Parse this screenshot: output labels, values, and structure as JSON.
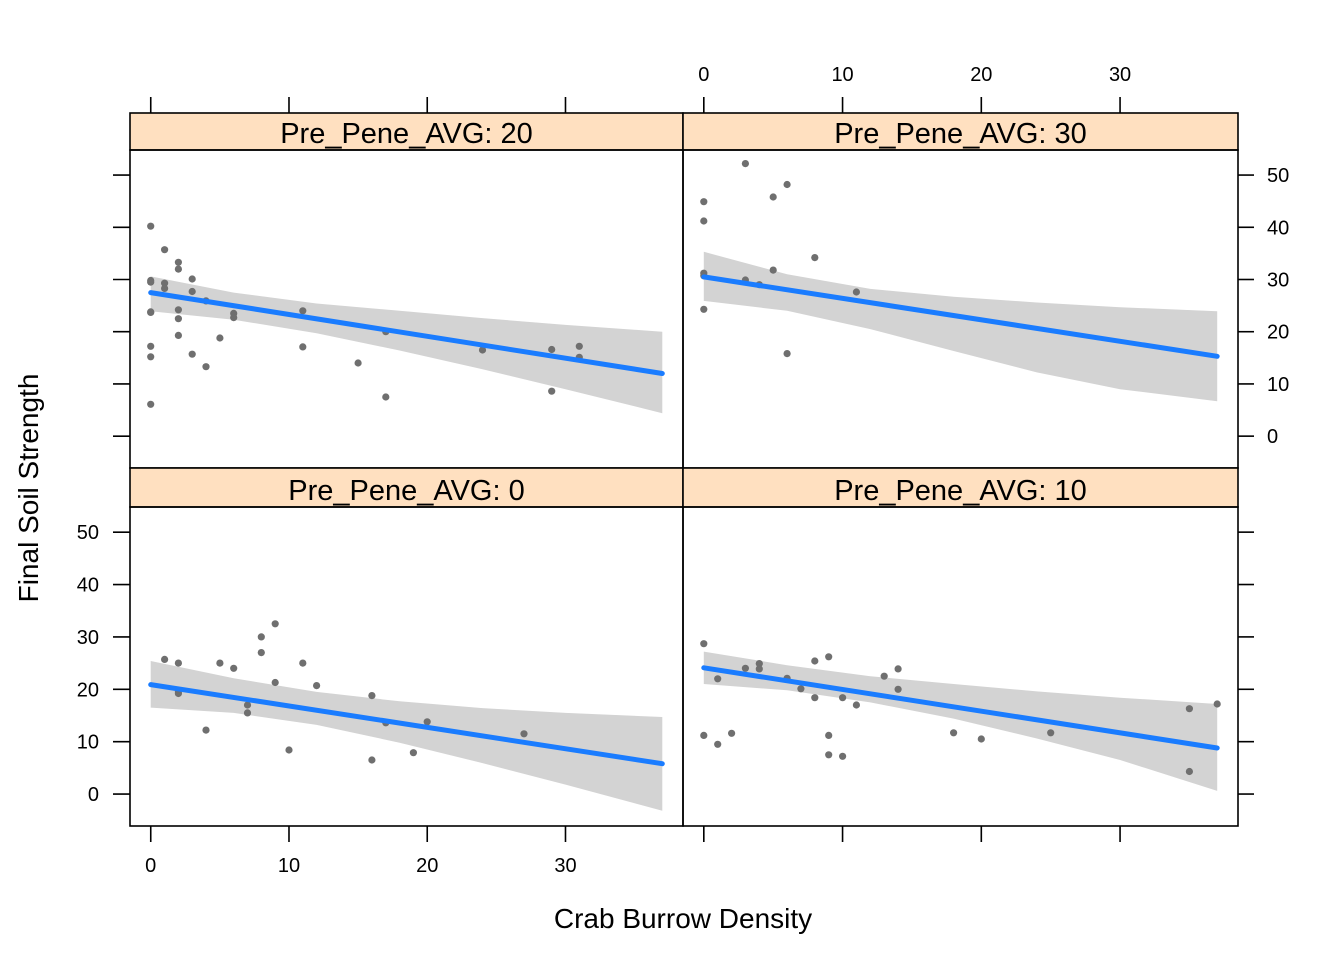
{
  "chart_data": {
    "type": "scatter",
    "xlabel": "Crab Burrow Density",
    "ylabel": "Final Soil Strength",
    "xlim": [
      -1.5,
      38.5
    ],
    "ylim": [
      -6.1,
      54.8
    ],
    "x_ticks": [
      "0",
      "10",
      "20",
      "30"
    ],
    "y_ticks": [
      "0",
      "10",
      "20",
      "30",
      "40",
      "50"
    ],
    "colors": {
      "strip": "#ffe0c0",
      "points": "#6f6f6f",
      "fit_line": "#1a7cff",
      "confidence_band": "#d3d3d3",
      "frame": "#000000"
    },
    "panels": [
      {
        "label": "Pre_Pene_AVG: 20",
        "position": "top-left",
        "points": [
          [
            0,
            40.2
          ],
          [
            1,
            35.7
          ],
          [
            2,
            33.3
          ],
          [
            2,
            32.0
          ],
          [
            3,
            30.1
          ],
          [
            0,
            29.8
          ],
          [
            0,
            29.5
          ],
          [
            1,
            29.3
          ],
          [
            1,
            28.3
          ],
          [
            3,
            27.7
          ],
          [
            4,
            25.9
          ],
          [
            6,
            23.5
          ],
          [
            6,
            22.7
          ],
          [
            11,
            24.0
          ],
          [
            2,
            24.2
          ],
          [
            0,
            23.7
          ],
          [
            0,
            23.8
          ],
          [
            2,
            22.5
          ],
          [
            2,
            19.3
          ],
          [
            5,
            18.8
          ],
          [
            17,
            20.0
          ],
          [
            0,
            17.2
          ],
          [
            11,
            17.1
          ],
          [
            3,
            15.7
          ],
          [
            0,
            15.2
          ],
          [
            4,
            13.3
          ],
          [
            15,
            14.0
          ],
          [
            24,
            16.5
          ],
          [
            29,
            16.6
          ],
          [
            31,
            17.2
          ],
          [
            31,
            15.1
          ],
          [
            17,
            7.5
          ],
          [
            29,
            8.6
          ],
          [
            0,
            6.1
          ]
        ],
        "fit": {
          "x": [
            0,
            37
          ],
          "y": [
            27.5,
            12.0
          ]
        },
        "band": {
          "x": [
            0,
            6,
            12,
            18,
            24,
            30,
            37
          ],
          "lower": [
            23.9,
            22.3,
            19.7,
            16.4,
            12.8,
            9.0,
            4.4
          ],
          "upper": [
            30.6,
            27.5,
            25.4,
            24.0,
            22.6,
            21.3,
            20.0
          ]
        }
      },
      {
        "label": "Pre_Pene_AVG: 30",
        "position": "top-right",
        "points": [
          [
            3,
            52.2
          ],
          [
            6,
            48.2
          ],
          [
            5,
            45.8
          ],
          [
            0,
            44.9
          ],
          [
            0,
            41.2
          ],
          [
            8,
            34.2
          ],
          [
            5,
            31.8
          ],
          [
            0,
            31.2
          ],
          [
            0,
            30.7
          ],
          [
            3,
            29.9
          ],
          [
            4,
            29.0
          ],
          [
            11,
            27.6
          ],
          [
            0,
            24.3
          ],
          [
            6,
            15.8
          ]
        ],
        "fit": {
          "x": [
            0,
            37
          ],
          "y": [
            30.5,
            15.3
          ]
        },
        "band": {
          "x": [
            0,
            6,
            12,
            18,
            24,
            30,
            37
          ],
          "lower": [
            25.9,
            24.0,
            20.5,
            16.3,
            12.2,
            9.0,
            6.7
          ],
          "upper": [
            35.3,
            31.0,
            28.2,
            26.7,
            25.6,
            24.7,
            23.9
          ]
        }
      },
      {
        "label": "Pre_Pene_AVG: 0",
        "position": "bottom-left",
        "points": [
          [
            9,
            32.5
          ],
          [
            8,
            30.0
          ],
          [
            8,
            27.0
          ],
          [
            1,
            25.7
          ],
          [
            2,
            25.0
          ],
          [
            5,
            25.0
          ],
          [
            11,
            25.0
          ],
          [
            6,
            24.0
          ],
          [
            9,
            21.3
          ],
          [
            12,
            20.7
          ],
          [
            2,
            19.5
          ],
          [
            2,
            19.2
          ],
          [
            16,
            18.8
          ],
          [
            7,
            17.0
          ],
          [
            7,
            15.5
          ],
          [
            17,
            13.6
          ],
          [
            20,
            13.8
          ],
          [
            4,
            12.2
          ],
          [
            27,
            11.5
          ],
          [
            10,
            8.4
          ],
          [
            19,
            7.9
          ],
          [
            16,
            6.5
          ]
        ],
        "fit": {
          "x": [
            0,
            37
          ],
          "y": [
            20.9,
            5.8
          ]
        },
        "band": {
          "x": [
            0,
            6,
            12,
            18,
            24,
            30,
            37
          ],
          "lower": [
            16.5,
            15.5,
            13.2,
            9.8,
            5.9,
            1.8,
            -3.2
          ],
          "upper": [
            25.4,
            22.1,
            19.5,
            17.7,
            16.4,
            15.5,
            14.7
          ]
        }
      },
      {
        "label": "Pre_Pene_AVG: 10",
        "position": "bottom-right",
        "points": [
          [
            0,
            28.7
          ],
          [
            9,
            26.2
          ],
          [
            8,
            25.4
          ],
          [
            4,
            24.9
          ],
          [
            3,
            24.0
          ],
          [
            4,
            23.9
          ],
          [
            14,
            23.9
          ],
          [
            13,
            22.5
          ],
          [
            6,
            22.1
          ],
          [
            1,
            22.0
          ],
          [
            7,
            20.1
          ],
          [
            14,
            20.0
          ],
          [
            8,
            18.4
          ],
          [
            10,
            18.4
          ],
          [
            11,
            17.0
          ],
          [
            35,
            16.3
          ],
          [
            37,
            17.2
          ],
          [
            25,
            11.7
          ],
          [
            18,
            11.7
          ],
          [
            2,
            11.6
          ],
          [
            0,
            11.2
          ],
          [
            9,
            11.2
          ],
          [
            20,
            10.5
          ],
          [
            1,
            9.5
          ],
          [
            9,
            7.5
          ],
          [
            10,
            7.2
          ],
          [
            35,
            4.3
          ]
        ],
        "fit": {
          "x": [
            0,
            37
          ],
          "y": [
            24.1,
            8.8
          ]
        },
        "band": {
          "x": [
            0,
            6,
            12,
            18,
            24,
            30,
            37
          ],
          "lower": [
            21.0,
            19.8,
            17.5,
            14.4,
            10.6,
            6.5,
            0.6
          ],
          "upper": [
            27.2,
            24.6,
            22.5,
            21.0,
            19.6,
            18.4,
            17.2
          ]
        }
      }
    ]
  }
}
